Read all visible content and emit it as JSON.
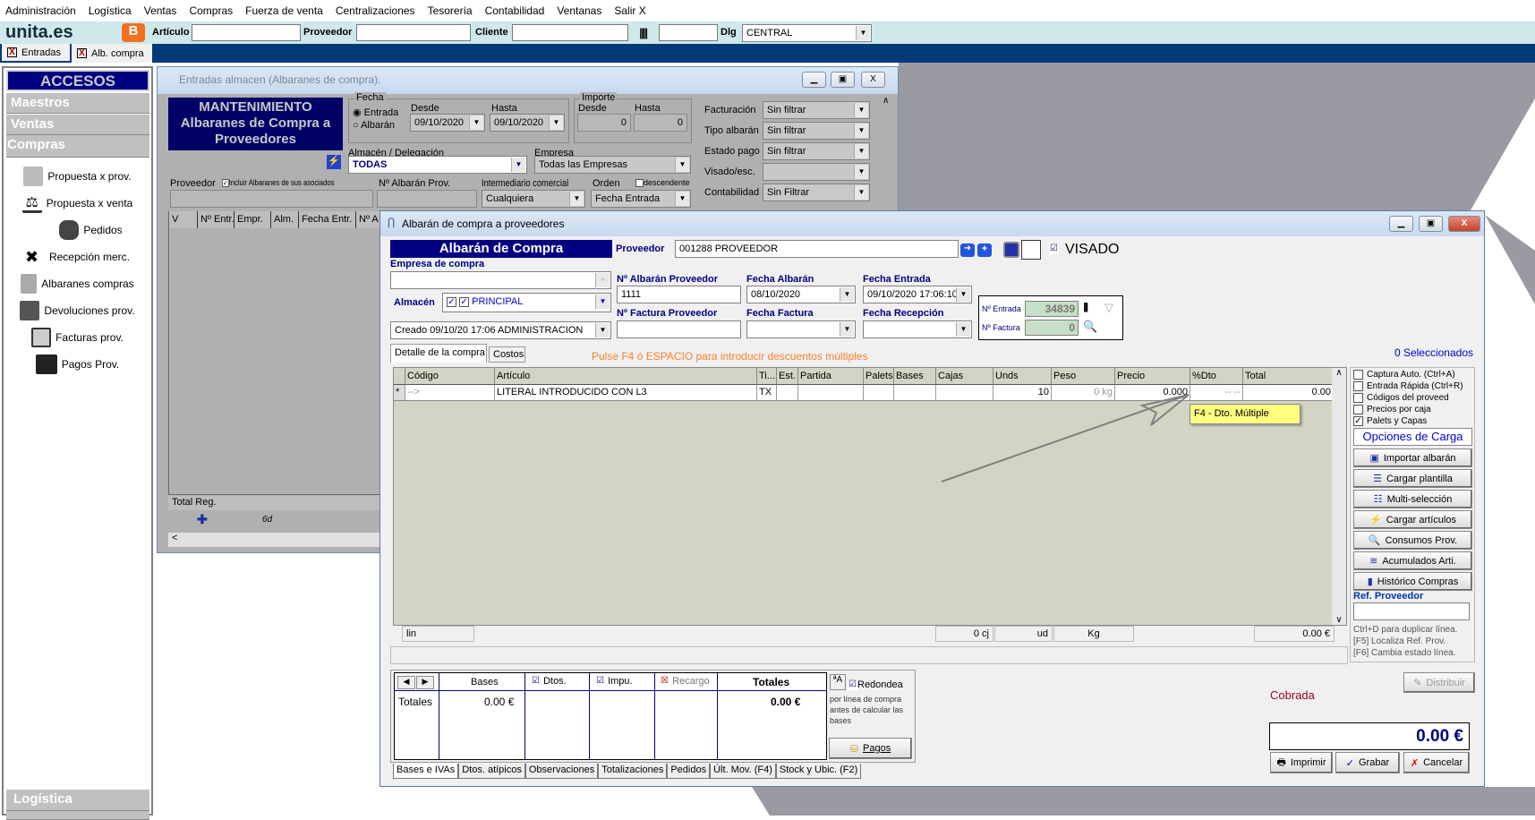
{
  "menu": [
    "Administración",
    "Logística",
    "Ventas",
    "Compras",
    "Fuerza de venta",
    "Centralizaciones",
    "Tesorería",
    "Contabilidad",
    "Ventanas",
    "Salir X"
  ],
  "toolbar": {
    "logo": "unita.es",
    "articulo_label": "Artículo",
    "proveedor_label": "Proveedor",
    "cliente_label": "Cliente",
    "dlg_label": "Dlg",
    "dlg_value": "CENTRAL"
  },
  "tabs": [
    "Entradas",
    "Alb. compra"
  ],
  "sidebar": {
    "title": "ACCESOS RAPIDOS",
    "sections": [
      "Maestros",
      "Ventas",
      "Compras"
    ],
    "items": [
      {
        "label": "Propuesta x prov.",
        "icon": "chart-line-icon"
      },
      {
        "label": "Propuesta x venta",
        "icon": "scale-icon"
      },
      {
        "label": "Pedidos",
        "icon": "phone-icon"
      },
      {
        "label": "Recepción merc.",
        "icon": "flags-icon"
      },
      {
        "label": "Albaranes compras",
        "icon": "bag-icon"
      },
      {
        "label": "Devoluciones prov.",
        "icon": "cart-icon"
      },
      {
        "label": "Facturas prov.",
        "icon": "invoice-icon"
      },
      {
        "label": "Pagos Prov.",
        "icon": "briefcase-icon"
      }
    ],
    "bottom_section": "Logística"
  },
  "back_window": {
    "title": "Entradas almacen (Albaranes de compra).",
    "header": "MANTENIMIENTO Albaranes de Compra a Proveedores",
    "fecha": {
      "label": "Fecha",
      "radio_entrada": "Entrada",
      "radio_albaran": "Albarán",
      "desde_label": "Desde",
      "hasta_label": "Hasta",
      "desde": "09/10/2020",
      "hasta": "09/10/2020"
    },
    "importe": {
      "label": "Importe",
      "desde_label": "Desde",
      "hasta_label": "Hasta",
      "desde": "0",
      "hasta": "0"
    },
    "almacen_label": "Almacén / Delegación",
    "almacen": "TODAS",
    "empresa_label": "Empresa",
    "empresa": "Todas las Empresas",
    "proveedor_label": "Proveedor",
    "incluir_label": "Incluir Albaranes de sus asociados",
    "n_albaran_label": "Nº Albarán Prov.",
    "intermediario_label": "Intermediario comercial",
    "intermediario": "Cualquiera",
    "orden_label": "Orden",
    "descendente_label": "descendente",
    "orden": "Fecha Entrada",
    "filters": [
      {
        "label": "Facturación",
        "value": "Sin filtrar"
      },
      {
        "label": "Tipo albarán",
        "value": "Sin filtrar"
      },
      {
        "label": "Estado pago",
        "value": "Sin filtrar"
      },
      {
        "label": "Visado/esc.",
        "value": ""
      },
      {
        "label": "Contabilidad",
        "value": "Sin Filtrar"
      }
    ],
    "columns": [
      "V",
      "Nº Entr.",
      "Empr.",
      "Alm.",
      "Fecha Entr.",
      "Nº A"
    ],
    "total_reg": "Total Reg.",
    "nav_text": "6d"
  },
  "front_window": {
    "title": "Albarán de compra a proveedores",
    "header": "Albarán de Compra",
    "empresa_label": "Empresa de compra",
    "empresa": "",
    "almacen_label": "Almacén",
    "almacen": "PRINCIPAL",
    "creado": "Creado 09/10/20 17:06 ADMINISTRACION",
    "proveedor_label": "Proveedor",
    "proveedor": "001288 PROVEEDOR",
    "visado": "VISADO",
    "n_albaran_label": "Nº Albarán Proveedor",
    "n_albaran": "1111",
    "fecha_albaran_label": "Fecha Albarán",
    "fecha_albaran": "08/10/2020",
    "fecha_entrada_label": "Fecha Entrada",
    "fecha_entrada": "09/10/2020 17:06:10",
    "n_factura_label": "Nº Factura Proveedor",
    "fecha_factura_label": "Fecha Factura",
    "fecha_recepcion_label": "Fecha Recepción",
    "n_entrada_label": "Nº Entrada",
    "n_entrada": "34839",
    "n_factura2_label": "Nº Factura",
    "n_factura2": "0",
    "tabs": [
      "Detalle de la compra",
      "Costos"
    ],
    "hint": "Pulse F4 ó ESPACIO para introducir descuentos múltiples",
    "seleccionados": "0 Seleccionados",
    "columns": [
      "Código",
      "Artículo",
      "Ti...",
      "Est.",
      "Partida",
      "Palets",
      "Bases",
      "Cajas",
      "Unds",
      "Peso",
      "Precio",
      "%Dto",
      "Total"
    ],
    "rows": [
      [
        "-->",
        "LITERAL INTRODUCIDO CON L3",
        "TX",
        "",
        "",
        "",
        "",
        "",
        "10",
        "0 kg",
        "0.000",
        "-- --",
        "0.00"
      ]
    ],
    "row_marker": "*",
    "tooltip": "F4 - Dto. Múltiple",
    "footer": {
      "lin": "lin",
      "cj": "0 cj",
      "ud": "ud",
      "kg": "Kg",
      "total": "0.00 €"
    },
    "options": [
      {
        "label": "Captura Auto. (Ctrl+A)",
        "checked": false
      },
      {
        "label": "Entrada Rápida (Ctrl+R)",
        "checked": false
      },
      {
        "label": "Códigos del proveed",
        "checked": false
      },
      {
        "label": "Precios por caja",
        "checked": false
      },
      {
        "label": "Palets y Capas",
        "checked": true
      }
    ],
    "opciones_carga": "Opciones de Carga",
    "load_buttons": [
      "Importar albarán",
      "Cargar plantilla",
      "Multi-selección",
      "Cargar artículos",
      "Consumos Prov.",
      "Acumulados Arti.",
      "Histórico Compras"
    ],
    "ref_label": "Ref. Proveedor",
    "ref_hints": [
      "Ctrl+D para duplicar línea.",
      "[F5] Localiza Ref. Prov.",
      "[F6] Cambia estado línea."
    ],
    "totals": {
      "headers": [
        "Bases",
        "Dtos.",
        "Impu.",
        "Recargo",
        "Totales"
      ],
      "row_label": "Totales",
      "bases": "0.00 €",
      "totales": "0.00 €"
    },
    "redondea": "Redondea",
    "redondea_note": "por línea de compra antes de calcular las bases",
    "pagos": "Pagos",
    "bottom_tabs": [
      "Bases e IVAs",
      "Dtos. atípicos",
      "Observaciones",
      "Totalizaciones",
      "Pedidos",
      "Últ. Mov. (F4)",
      "Stock y Ubic. (F2)"
    ],
    "distribuir": "Distribuir",
    "estado": "Cobrada",
    "total": "0.00 €",
    "imprimir": "Imprimir",
    "grabar": "Grabar",
    "cancelar": "Cancelar"
  },
  "colors": {
    "navy": "#000080",
    "accent_blue": "#0000cc",
    "hint_orange": "#ff7f2a",
    "cobrada": "#a00020",
    "grid_bg": "#d4d4c4"
  }
}
